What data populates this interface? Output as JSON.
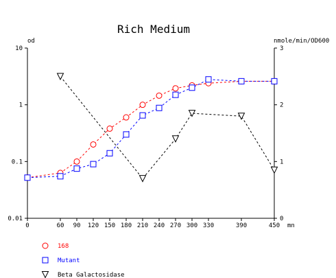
{
  "chart_data": {
    "type": "line",
    "title": "Rich Medium",
    "left_axis": {
      "unit_label": "od",
      "scale": "log",
      "ylim": [
        0.01,
        10
      ],
      "ticks": [
        "0.01",
        "0.1",
        "1",
        "10"
      ]
    },
    "right_axis": {
      "unit_label": "nmole/min/OD600",
      "scale": "linear",
      "ylim": [
        0,
        3
      ],
      "ticks": [
        "0",
        "1",
        "2",
        "3"
      ]
    },
    "x_axis": {
      "unit_label": "mn",
      "xlim": [
        0,
        450
      ],
      "ticks": [
        "0",
        "60",
        "90",
        "120",
        "150",
        "180",
        "210",
        "240",
        "270",
        "300",
        "330",
        "390",
        "450"
      ]
    },
    "grid": false,
    "legend": {
      "placement": "bottom-left"
    },
    "series": [
      {
        "name": "168",
        "axis": "left",
        "marker": "circle",
        "color": "#ff0000",
        "points": [
          {
            "x": 0,
            "y": 0.052
          },
          {
            "x": 60,
            "y": 0.063
          },
          {
            "x": 90,
            "y": 0.1
          },
          {
            "x": 120,
            "y": 0.2
          },
          {
            "x": 150,
            "y": 0.38
          },
          {
            "x": 180,
            "y": 0.6
          },
          {
            "x": 210,
            "y": 1.0
          },
          {
            "x": 240,
            "y": 1.45
          },
          {
            "x": 270,
            "y": 1.95
          },
          {
            "x": 300,
            "y": 2.2
          },
          {
            "x": 330,
            "y": 2.4
          },
          {
            "x": 390,
            "y": 2.6
          },
          {
            "x": 450,
            "y": 2.6
          }
        ]
      },
      {
        "name": "Mutant",
        "axis": "left",
        "marker": "square",
        "color": "#0000ff",
        "points": [
          {
            "x": 0,
            "y": 0.052
          },
          {
            "x": 60,
            "y": 0.055
          },
          {
            "x": 90,
            "y": 0.075
          },
          {
            "x": 120,
            "y": 0.09
          },
          {
            "x": 150,
            "y": 0.14
          },
          {
            "x": 180,
            "y": 0.3
          },
          {
            "x": 210,
            "y": 0.65
          },
          {
            "x": 240,
            "y": 0.88
          },
          {
            "x": 270,
            "y": 1.5
          },
          {
            "x": 300,
            "y": 2.0
          },
          {
            "x": 330,
            "y": 2.8
          },
          {
            "x": 390,
            "y": 2.6
          },
          {
            "x": 450,
            "y": 2.6
          }
        ]
      },
      {
        "name": "Beta Galactosidase",
        "axis": "right",
        "marker": "triangle-down",
        "color": "#000000",
        "points": [
          {
            "x": 60,
            "y": 2.5
          },
          {
            "x": 210,
            "y": 0.7
          },
          {
            "x": 270,
            "y": 1.4
          },
          {
            "x": 300,
            "y": 1.85
          },
          {
            "x": 390,
            "y": 1.8
          },
          {
            "x": 450,
            "y": 0.85
          }
        ]
      }
    ]
  }
}
